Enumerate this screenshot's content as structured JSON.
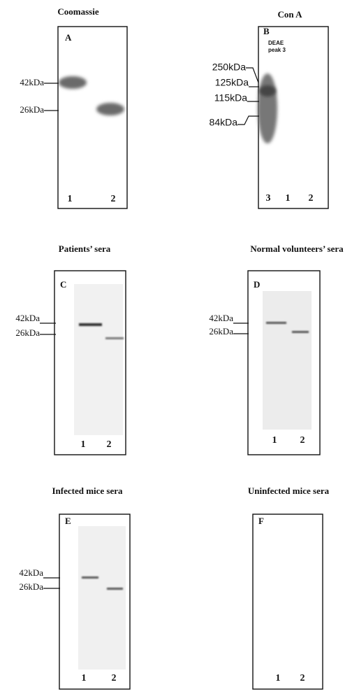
{
  "panels": [
    {
      "title": "Coomassie",
      "letter": "A",
      "markers": [
        "42kDa",
        "26kDa"
      ],
      "lanes": [
        "1",
        "2"
      ]
    },
    {
      "title": "Con A",
      "letter": "B",
      "note": [
        "DEAE",
        "peak 3"
      ],
      "markers": [
        "250kDa",
        "125kDa",
        "115kDa",
        "84kDa"
      ],
      "lanes": [
        "3",
        "1",
        "2"
      ]
    },
    {
      "title": "Patients’ sera",
      "letter": "C",
      "markers": [
        "42kDa",
        "26kDa"
      ],
      "lanes": [
        "1",
        "2"
      ]
    },
    {
      "title": "Normal volunteers’ sera",
      "letter": "D",
      "markers": [
        "42kDa",
        "26kDa"
      ],
      "lanes": [
        "1",
        "2"
      ]
    },
    {
      "title": "Infected mice sera",
      "letter": "E",
      "markers": [
        "42kDa",
        "26kDa"
      ],
      "lanes": [
        "1",
        "2"
      ]
    },
    {
      "title": "Uninfected mice sera",
      "letter": "F",
      "lanes": [
        "1",
        "2"
      ]
    }
  ]
}
